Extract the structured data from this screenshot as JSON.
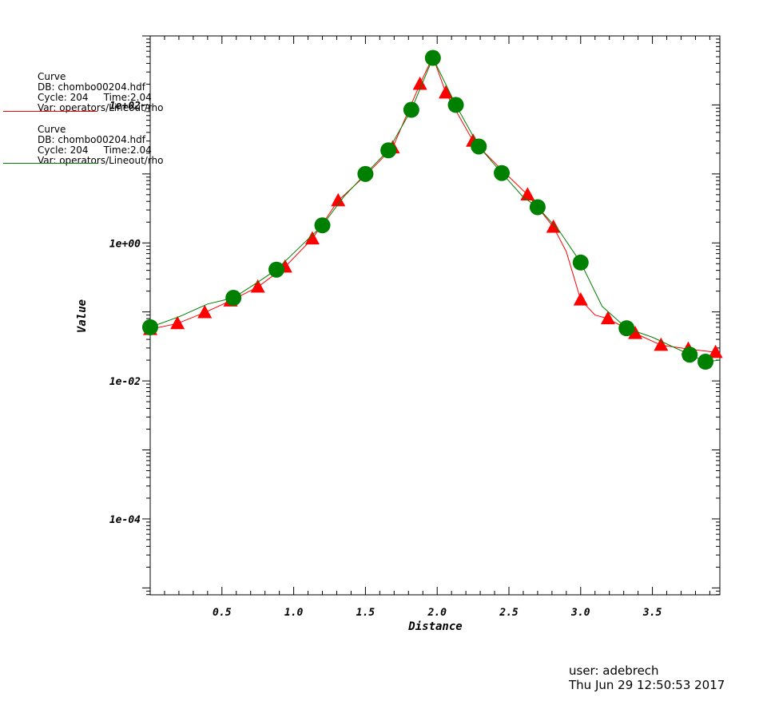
{
  "legend": [
    {
      "title": "Curve",
      "db": "DB: chombo00204.hdf",
      "cycle": "Cycle: 204",
      "time": "Time:2.04",
      "var": "Var: operators/Lineout/rho",
      "color": "#ff0000"
    },
    {
      "title": "Curve",
      "db": "DB: chombo00204.hdf",
      "cycle": "Cycle: 204",
      "time": "Time:2.04",
      "var": "Var: operators/Lineout/rho",
      "color": "#008000"
    }
  ],
  "footer": {
    "user": "user: adebrech",
    "timestamp": "Thu Jun 29 12:50:53 2017"
  },
  "chart_data": {
    "type": "line",
    "xlabel": "Distance",
    "ylabel": "Value",
    "xlim": [
      0,
      3.97
    ],
    "ylim_log10": [
      -5.1,
      3.0
    ],
    "yscale": "log",
    "x_ticks": [
      0.5,
      1.0,
      1.5,
      2.0,
      2.5,
      3.0,
      3.5
    ],
    "x_tick_labels": [
      "0.5",
      "1.0",
      "1.5",
      "2.0",
      "2.5",
      "3.0",
      "3.5"
    ],
    "y_tick_exponents": [
      -4,
      -2,
      0,
      2
    ],
    "y_tick_labels": [
      "1e-04",
      "1e-02",
      "1e+00",
      "1e+02"
    ],
    "series": [
      {
        "color": "#ff0000",
        "marker": "triangle",
        "x": [
          0.0,
          0.19,
          0.38,
          0.56,
          0.75,
          0.94,
          1.13,
          1.31,
          1.5,
          1.69,
          1.88,
          1.97,
          2.06,
          2.25,
          2.44,
          2.63,
          2.81,
          2.9,
          3.0,
          3.1,
          3.19,
          3.38,
          3.56,
          3.75,
          3.94
        ],
        "y": [
          0.056,
          0.068,
          0.098,
          0.145,
          0.23,
          0.45,
          1.15,
          4.1,
          9.5,
          24.0,
          200.0,
          500.0,
          150.0,
          30.0,
          12.0,
          5.0,
          1.7,
          0.75,
          0.15,
          0.09,
          0.08,
          0.049,
          0.033,
          0.029,
          0.026
        ],
        "marker_x": [
          0.0,
          0.19,
          0.38,
          0.56,
          0.75,
          0.94,
          1.13,
          1.31,
          1.69,
          1.88,
          2.06,
          2.25,
          2.63,
          2.81,
          3.0,
          3.19,
          3.38,
          3.56,
          3.75,
          3.94
        ]
      },
      {
        "color": "#008000",
        "marker": "circle",
        "x": [
          0.0,
          0.2,
          0.4,
          0.58,
          0.75,
          0.88,
          1.05,
          1.2,
          1.35,
          1.5,
          1.66,
          1.82,
          1.97,
          2.13,
          2.29,
          2.45,
          2.6,
          2.7,
          2.85,
          3.0,
          3.15,
          3.32,
          3.5,
          3.76,
          3.87,
          3.97
        ],
        "y": [
          0.06,
          0.085,
          0.13,
          0.16,
          0.27,
          0.41,
          0.9,
          1.8,
          4.7,
          10.0,
          22.0,
          85.0,
          480.0,
          100.0,
          25.0,
          10.3,
          4.6,
          3.3,
          1.5,
          0.52,
          0.12,
          0.058,
          0.043,
          0.024,
          0.019,
          0.02
        ],
        "marker_x": [
          0.0,
          0.58,
          0.88,
          1.2,
          1.5,
          1.66,
          1.82,
          1.97,
          2.13,
          2.29,
          2.45,
          2.7,
          3.0,
          3.32,
          3.76,
          3.87
        ]
      }
    ]
  }
}
